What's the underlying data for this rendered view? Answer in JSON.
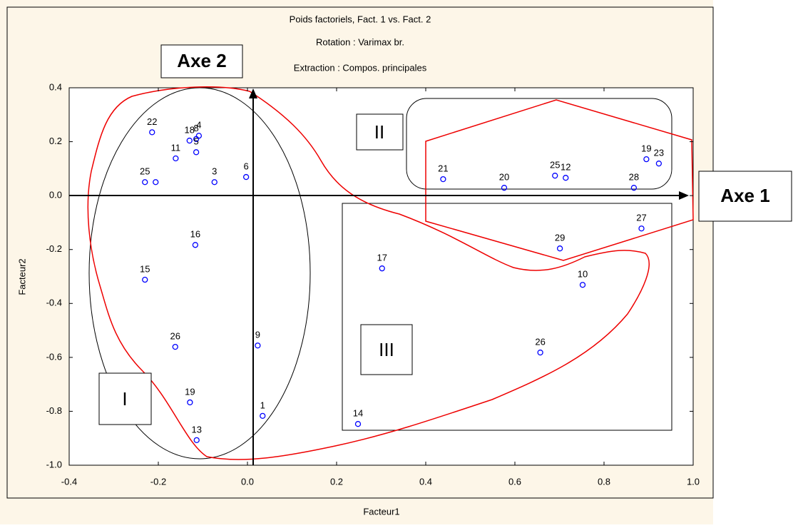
{
  "chart_data": {
    "type": "scatter",
    "title": "Poids factoriels, Fact. 1 vs. Fact.  2",
    "subtitle": [
      "Rotation : Varimax br.",
      "Extraction :  Compos. principales"
    ],
    "x_label": "Facteur1",
    "y_label": "Facteur2",
    "color": "#0000ff",
    "point_labels": [
      "22",
      "18",
      "4",
      "8",
      "11",
      "5",
      "25",
      null,
      "3",
      "6",
      "16",
      "15",
      "26",
      "9",
      "19",
      "1",
      "13",
      "14",
      "17",
      "21",
      "20",
      "25",
      "12",
      "28",
      "19",
      "23",
      "27",
      "29",
      "10",
      "26"
    ],
    "x": [
      -0.214,
      -0.13,
      -0.109,
      -0.115,
      -0.161,
      -0.115,
      -0.23,
      -0.206,
      -0.074,
      -0.003,
      -0.117,
      -0.23,
      -0.162,
      0.023,
      -0.129,
      0.034,
      -0.114,
      0.248,
      0.302,
      0.439,
      0.576,
      0.69,
      0.714,
      0.867,
      0.895,
      0.923,
      0.884,
      0.701,
      0.752,
      0.657
    ],
    "y": [
      0.235,
      0.204,
      0.222,
      0.21,
      0.138,
      0.161,
      0.05,
      0.05,
      0.05,
      0.069,
      -0.183,
      -0.312,
      -0.561,
      -0.556,
      -0.767,
      -0.817,
      -0.907,
      -0.847,
      -0.27,
      0.061,
      0.029,
      0.074,
      0.066,
      0.029,
      0.135,
      0.119,
      -0.122,
      -0.196,
      -0.331,
      -0.582
    ],
    "xlim": [
      -0.4,
      1.0
    ],
    "ylim": [
      -1.0,
      0.4
    ],
    "xticks": [
      -0.4,
      -0.2,
      {
        "value": 0,
        "label": "0.0"
      },
      0.2,
      0.4,
      0.6,
      0.8,
      {
        "value": 1,
        "label": "1.0"
      }
    ],
    "yticks": [
      0.4,
      0.2,
      {
        "value": 0,
        "label": "0.0"
      },
      -0.2,
      -0.4,
      -0.6,
      -0.8,
      {
        "value": -1,
        "label": "-1.0"
      }
    ],
    "annotations": [
      "Axe 1",
      "Axe 2",
      "I",
      "II",
      "III"
    ]
  }
}
